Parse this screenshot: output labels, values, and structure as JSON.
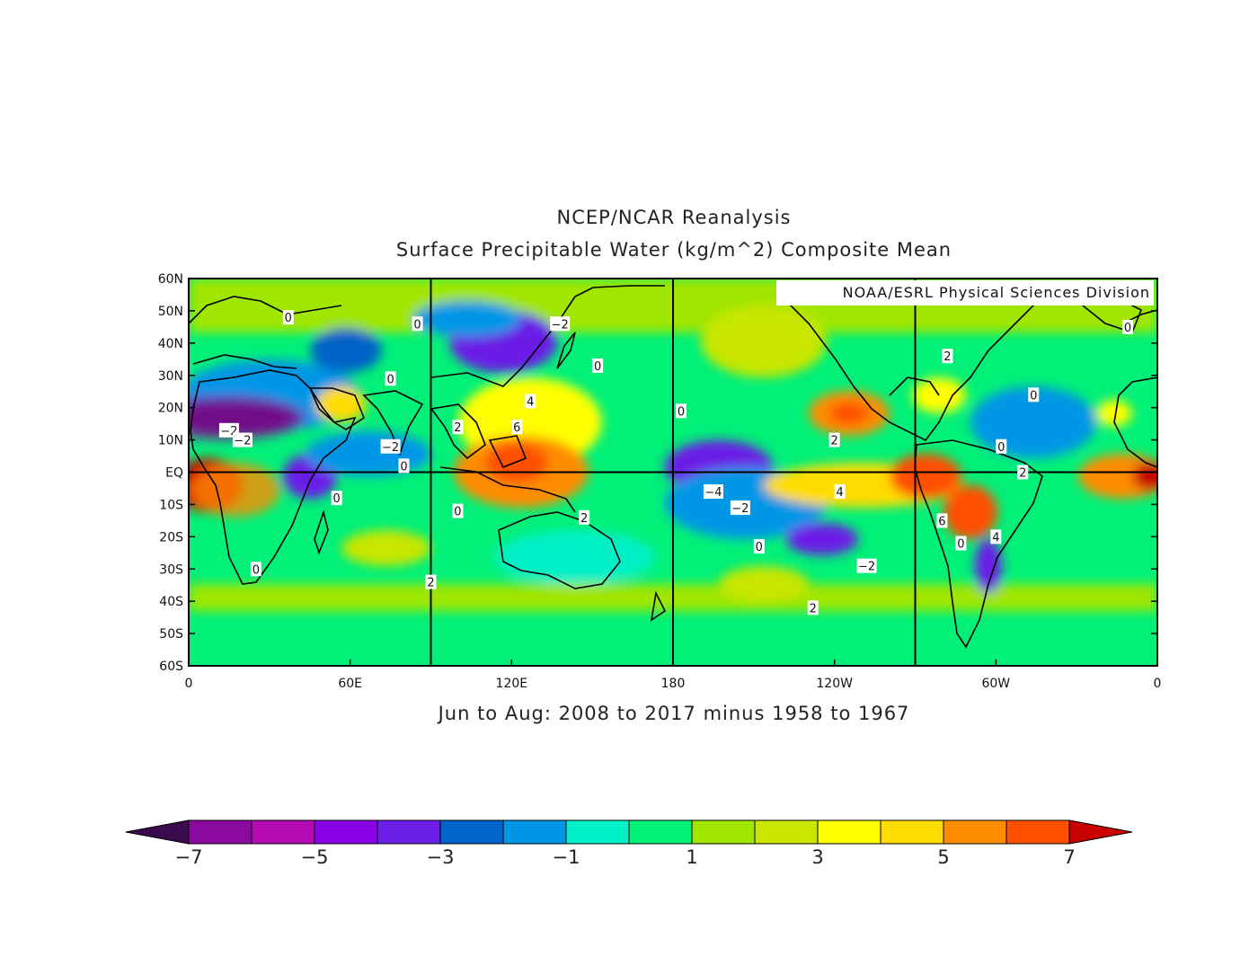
{
  "title_line1": "NCEP/NCAR Reanalysis",
  "title_line2": "Surface Precipitable Water (kg/m^2) Composite Mean",
  "subtitle": "Jun to Aug: 2008 to 2017 minus 1958 to 1967",
  "credit": "NOAA/ESRL Physical Sciences Division",
  "map": {
    "lon_range": [
      0,
      360
    ],
    "lat_range": [
      -60,
      60
    ],
    "y_ticks": [
      {
        "lat": 60,
        "label": "60N"
      },
      {
        "lat": 50,
        "label": "50N"
      },
      {
        "lat": 40,
        "label": "40N"
      },
      {
        "lat": 30,
        "label": "30N"
      },
      {
        "lat": 20,
        "label": "20N"
      },
      {
        "lat": 10,
        "label": "10N"
      },
      {
        "lat": 0,
        "label": "EQ"
      },
      {
        "lat": -10,
        "label": "10S"
      },
      {
        "lat": -20,
        "label": "20S"
      },
      {
        "lat": -30,
        "label": "30S"
      },
      {
        "lat": -40,
        "label": "40S"
      },
      {
        "lat": -50,
        "label": "50S"
      },
      {
        "lat": -60,
        "label": "60S"
      }
    ],
    "x_ticks": [
      {
        "lon": 0,
        "label": "0"
      },
      {
        "lon": 60,
        "label": "60E"
      },
      {
        "lon": 120,
        "label": "120E"
      },
      {
        "lon": 180,
        "label": "180"
      },
      {
        "lon": 240,
        "label": "120W"
      },
      {
        "lon": 300,
        "label": "60W"
      },
      {
        "lon": 360,
        "label": "0"
      }
    ],
    "gridlines_lon": [
      90,
      180,
      270
    ],
    "gridlines_lat": [
      0
    ],
    "contour_labels": [
      {
        "lon": 37,
        "lat": 48,
        "text": "0"
      },
      {
        "lon": 85,
        "lat": 46,
        "text": "0"
      },
      {
        "lon": 138,
        "lat": 46,
        "text": "−2"
      },
      {
        "lon": 152,
        "lat": 33,
        "text": "0"
      },
      {
        "lon": 75,
        "lat": 29,
        "text": "0"
      },
      {
        "lon": 127,
        "lat": 22,
        "text": "4"
      },
      {
        "lon": 183,
        "lat": 19,
        "text": "0"
      },
      {
        "lon": 282,
        "lat": 36,
        "text": "2"
      },
      {
        "lon": 314,
        "lat": 24,
        "text": "0"
      },
      {
        "lon": 349,
        "lat": 45,
        "text": "0"
      },
      {
        "lon": 15,
        "lat": 13,
        "text": "−2"
      },
      {
        "lon": 20,
        "lat": 10,
        "text": "−2"
      },
      {
        "lon": 100,
        "lat": 14,
        "text": "2"
      },
      {
        "lon": 122,
        "lat": 14,
        "text": "6"
      },
      {
        "lon": 240,
        "lat": 10,
        "text": "2"
      },
      {
        "lon": 75,
        "lat": 8,
        "text": "−2"
      },
      {
        "lon": 80,
        "lat": 2,
        "text": "0"
      },
      {
        "lon": 302,
        "lat": 8,
        "text": "0"
      },
      {
        "lon": 310,
        "lat": 0,
        "text": "2"
      },
      {
        "lon": 55,
        "lat": -8,
        "text": "0"
      },
      {
        "lon": 195,
        "lat": -6,
        "text": "−4"
      },
      {
        "lon": 205,
        "lat": -11,
        "text": "−2"
      },
      {
        "lon": 242,
        "lat": -6,
        "text": "4"
      },
      {
        "lon": 100,
        "lat": -12,
        "text": "0"
      },
      {
        "lon": 147,
        "lat": -14,
        "text": "2"
      },
      {
        "lon": 280,
        "lat": -15,
        "text": "6"
      },
      {
        "lon": 212,
        "lat": -23,
        "text": "0"
      },
      {
        "lon": 287,
        "lat": -22,
        "text": "0"
      },
      {
        "lon": 300,
        "lat": -20,
        "text": "4"
      },
      {
        "lon": 25,
        "lat": -30,
        "text": "0"
      },
      {
        "lon": 252,
        "lat": -29,
        "text": "−2"
      },
      {
        "lon": 90,
        "lat": -34,
        "text": "2"
      },
      {
        "lon": 232,
        "lat": -42,
        "text": "2"
      }
    ]
  },
  "colorbar": {
    "colors": [
      "#3b0a4d",
      "#8a0aa0",
      "#b40ab4",
      "#8a00e6",
      "#6a1ee6",
      "#0064c8",
      "#0096e6",
      "#00f0c8",
      "#00f078",
      "#a0e600",
      "#c8e600",
      "#ffff00",
      "#ffdc00",
      "#ff8c00",
      "#ff5000",
      "#c80000"
    ],
    "labels": [
      "−7",
      "−5",
      "−3",
      "−1",
      "1",
      "3",
      "5",
      "7"
    ]
  },
  "colors": {
    "background": "#ffffff",
    "coast": "#000000"
  }
}
